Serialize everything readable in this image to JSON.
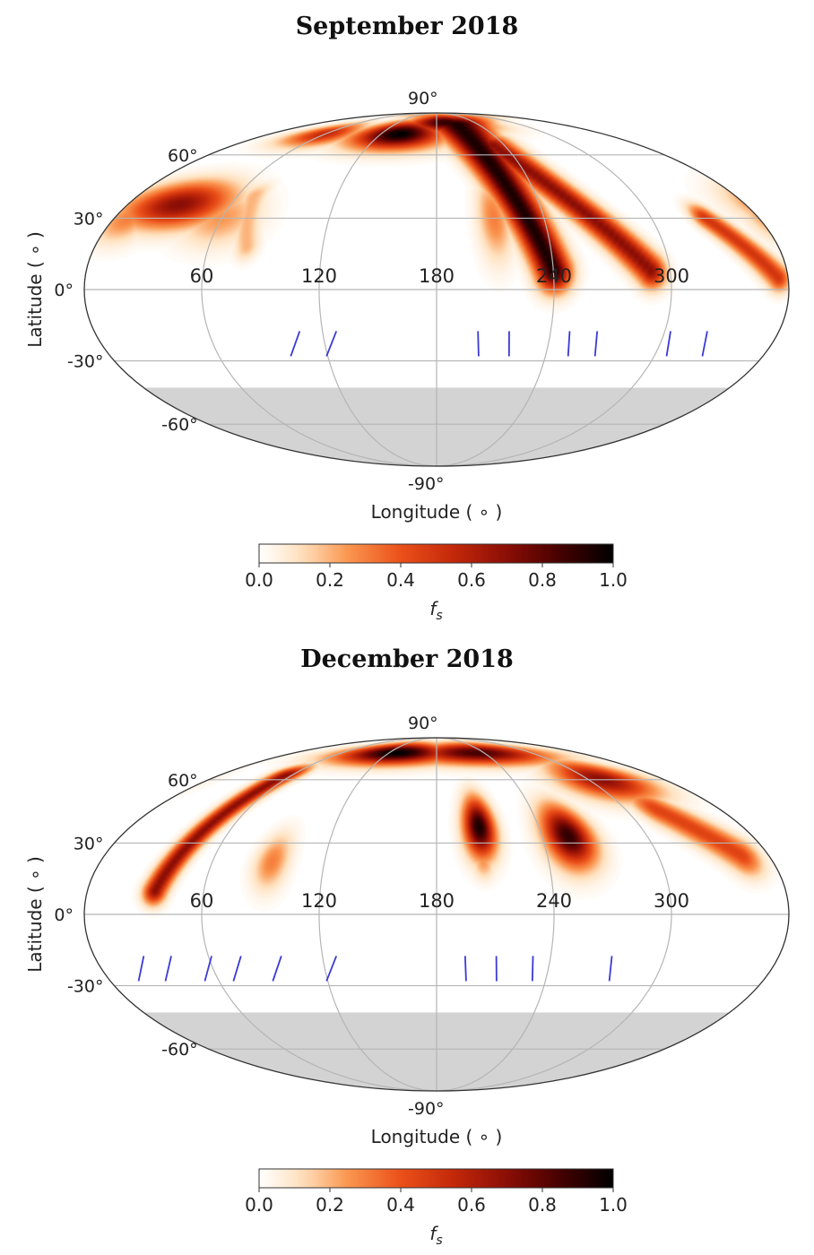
{
  "chart_data": [
    {
      "type": "heatmap",
      "projection": "mollweide",
      "title": "September 2018",
      "xlabel": "Longitude ( ∘ )",
      "ylabel": "Latitude ( ∘ )",
      "x_ticks": [
        "60",
        "120",
        "180",
        "240",
        "300"
      ],
      "y_ticks": [
        "90°",
        "60°",
        "30°",
        "0°",
        "-30°",
        "-60°",
        "-90°"
      ],
      "colorbar": {
        "label": "f",
        "label_sub": "s",
        "ticks": [
          "0.0",
          "0.2",
          "0.4",
          "0.6",
          "0.8",
          "1.0"
        ],
        "range": [
          0,
          1
        ],
        "cmap": "gist_heat_r"
      },
      "masked_below_latitude": -42,
      "spots": [
        {
          "lon": 140,
          "lat": 72,
          "sigma_lon": 30,
          "sigma_lat": 6,
          "value": 1.0
        },
        {
          "lon": 195,
          "lat": 80,
          "sigma_lon": 40,
          "sigma_lat": 5,
          "value": 0.9
        },
        {
          "lon": 60,
          "lat": 72,
          "sigma_lon": 22,
          "sigma_lat": 5,
          "value": 0.55
        },
        {
          "lon": 30,
          "lat": 36,
          "sigma_lon": 20,
          "sigma_lat": 7,
          "value": 0.7
        },
        {
          "lon": 8,
          "lat": 30,
          "sigma_lon": 10,
          "sigma_lat": 7,
          "value": 0.3
        },
        {
          "lon": 60,
          "lat": 30,
          "sigma_lon": 14,
          "sigma_lat": 8,
          "value": 0.25
        },
        {
          "lon": 212,
          "lat": 30,
          "sigma_lon": 6,
          "sigma_lat": 12,
          "value": 0.3
        }
      ],
      "arcs": [
        {
          "lat0": 78,
          "lon0": 210,
          "lat1": 8,
          "lon1": 240,
          "width": 6,
          "value": 0.95
        },
        {
          "lat0": 65,
          "lon0": 230,
          "lat1": 8,
          "lon1": 290,
          "width": 5,
          "value": 0.7
        },
        {
          "lat0": 30,
          "lon0": 330,
          "lat1": 5,
          "lon1": 355,
          "width": 4,
          "value": 0.5
        },
        {
          "lat0": 40,
          "lon0": 70,
          "lat1": 18,
          "lon1": 80,
          "width": 4,
          "value": 0.2
        }
      ],
      "observation_lon": [
        100,
        120,
        205,
        222,
        255,
        270,
        310,
        330
      ]
    },
    {
      "type": "heatmap",
      "projection": "mollweide",
      "title": "December 2018",
      "xlabel": "Longitude ( ∘ )",
      "ylabel": "Latitude ( ∘ )",
      "x_ticks": [
        "60",
        "120",
        "180",
        "240",
        "300"
      ],
      "y_ticks": [
        "90°",
        "60°",
        "30°",
        "0°",
        "-30°",
        "-60°",
        "-90°"
      ],
      "colorbar": {
        "label": "f",
        "label_sub": "s",
        "ticks": [
          "0.0",
          "0.2",
          "0.4",
          "0.6",
          "0.8",
          "1.0"
        ],
        "range": [
          0,
          1
        ],
        "cmap": "gist_heat_r"
      },
      "masked_below_latitude": -42,
      "spots": [
        {
          "lon": 130,
          "lat": 76,
          "sigma_lon": 45,
          "sigma_lat": 5,
          "value": 1.0
        },
        {
          "lon": 230,
          "lat": 76,
          "sigma_lon": 55,
          "sigma_lat": 5,
          "value": 0.85
        },
        {
          "lon": 310,
          "lat": 60,
          "sigma_lon": 22,
          "sigma_lat": 7,
          "value": 0.7
        },
        {
          "lon": 205,
          "lat": 37,
          "sigma_lon": 6,
          "sigma_lat": 9,
          "value": 0.95
        },
        {
          "lon": 255,
          "lat": 33,
          "sigma_lon": 9,
          "sigma_lat": 9,
          "value": 0.9
        },
        {
          "lon": 92,
          "lat": 22,
          "sigma_lon": 6,
          "sigma_lat": 8,
          "value": 0.3
        },
        {
          "lon": 205,
          "lat": 22,
          "sigma_lon": 4,
          "sigma_lat": 5,
          "value": 0.25
        }
      ],
      "arcs": [
        {
          "lat0": 62,
          "lon0": 55,
          "lat1": 10,
          "lon1": 35,
          "width": 4,
          "value": 0.7
        },
        {
          "lat0": 45,
          "lon0": 320,
          "lat1": 25,
          "lon1": 345,
          "width": 6,
          "value": 0.45
        }
      ],
      "observation_lon": [
        15,
        30,
        52,
        68,
        90,
        120,
        198,
        215,
        235,
        278
      ]
    }
  ]
}
